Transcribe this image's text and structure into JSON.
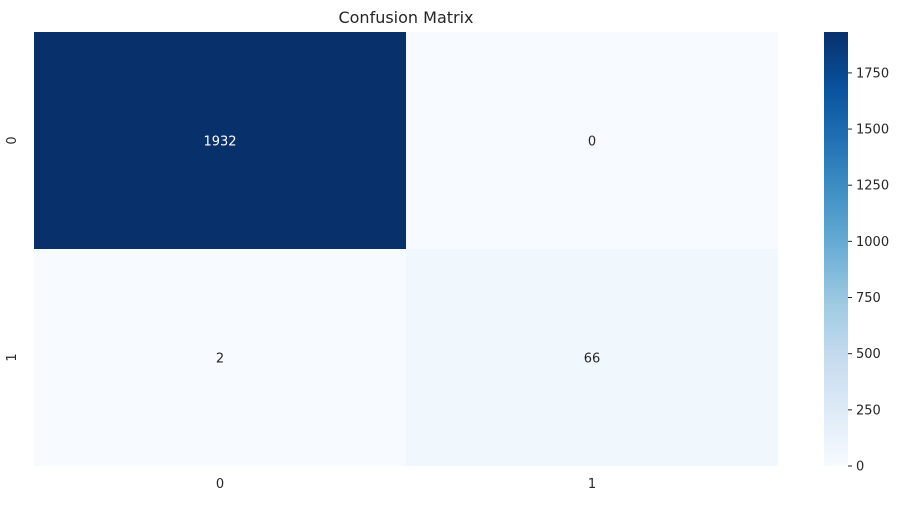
{
  "chart_data": {
    "type": "heatmap",
    "title": "Confusion Matrix",
    "x_ticks": [
      "0",
      "1"
    ],
    "y_ticks": [
      "0",
      "1"
    ],
    "matrix": [
      [
        1932,
        0
      ],
      [
        2,
        66
      ]
    ],
    "cell_labels": [
      [
        "1932",
        "0"
      ],
      [
        "2",
        "66"
      ]
    ],
    "colorbar": {
      "min": 0,
      "max": 1932,
      "ticks": [
        0,
        250,
        500,
        750,
        1000,
        1250,
        1500,
        1750
      ],
      "tick_labels": [
        "0",
        "250",
        "500",
        "750",
        "1000",
        "1250",
        "1500",
        "1750"
      ]
    },
    "colormap": "Blues",
    "colors": {
      "low": "#f7fbff",
      "high": "#08306b"
    }
  }
}
